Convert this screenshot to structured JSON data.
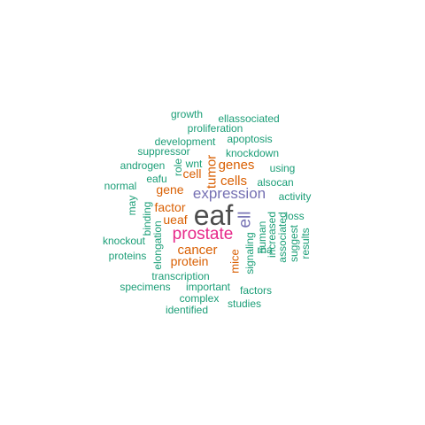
{
  "colors": {
    "dark": "#4d4d4d",
    "magenta": "#e7298a",
    "purple": "#7570b3",
    "orange": "#d95f02",
    "green": "#1b9e77",
    "background": "#ffffff"
  },
  "words": [
    {
      "text": "eaf",
      "color": "#4d4d4d"
    },
    {
      "text": "prostate",
      "color": "#e7298a"
    },
    {
      "text": "expression",
      "color": "#7570b3"
    },
    {
      "text": "ell",
      "color": "#7570b3"
    },
    {
      "text": "cancer",
      "color": "#d95f02"
    },
    {
      "text": "tumor",
      "color": "#d95f02"
    },
    {
      "text": "cells",
      "color": "#d95f02"
    },
    {
      "text": "genes",
      "color": "#d95f02"
    },
    {
      "text": "cell",
      "color": "#d95f02"
    },
    {
      "text": "factor",
      "color": "#d95f02"
    },
    {
      "text": "protein",
      "color": "#d95f02"
    },
    {
      "text": "ueaf",
      "color": "#d95f02"
    },
    {
      "text": "gene",
      "color": "#d95f02"
    },
    {
      "text": "mice",
      "color": "#d95f02"
    },
    {
      "text": "growth",
      "color": "#1b9e77"
    },
    {
      "text": "ellassociated",
      "color": "#1b9e77"
    },
    {
      "text": "proliferation",
      "color": "#1b9e77"
    },
    {
      "text": "development",
      "color": "#1b9e77"
    },
    {
      "text": "apoptosis",
      "color": "#1b9e77"
    },
    {
      "text": "suppressor",
      "color": "#1b9e77"
    },
    {
      "text": "knockdown",
      "color": "#1b9e77"
    },
    {
      "text": "androgen",
      "color": "#1b9e77"
    },
    {
      "text": "role",
      "color": "#1b9e77"
    },
    {
      "text": "wnt",
      "color": "#1b9e77"
    },
    {
      "text": "using",
      "color": "#1b9e77"
    },
    {
      "text": "eafu",
      "color": "#1b9e77"
    },
    {
      "text": "alsocan",
      "color": "#1b9e77"
    },
    {
      "text": "normal",
      "color": "#1b9e77"
    },
    {
      "text": "activity",
      "color": "#1b9e77"
    },
    {
      "text": "may",
      "color": "#1b9e77"
    },
    {
      "text": "loss",
      "color": "#1b9e77"
    },
    {
      "text": "binding",
      "color": "#1b9e77"
    },
    {
      "text": "knockout",
      "color": "#1b9e77"
    },
    {
      "text": "elongation",
      "color": "#1b9e77"
    },
    {
      "text": "proteins",
      "color": "#1b9e77"
    },
    {
      "text": "human",
      "color": "#1b9e77"
    },
    {
      "text": "increased",
      "color": "#1b9e77"
    },
    {
      "text": "associated",
      "color": "#1b9e77"
    },
    {
      "text": "suggest",
      "color": "#1b9e77"
    },
    {
      "text": "results",
      "color": "#1b9e77"
    },
    {
      "text": "signaling",
      "color": "#1b9e77"
    },
    {
      "text": "rna",
      "color": "#1b9e77"
    },
    {
      "text": "transcription",
      "color": "#1b9e77"
    },
    {
      "text": "specimens",
      "color": "#1b9e77"
    },
    {
      "text": "important",
      "color": "#1b9e77"
    },
    {
      "text": "factors",
      "color": "#1b9e77"
    },
    {
      "text": "complex",
      "color": "#1b9e77"
    },
    {
      "text": "studies",
      "color": "#1b9e77"
    },
    {
      "text": "identified",
      "color": "#1b9e77"
    }
  ]
}
